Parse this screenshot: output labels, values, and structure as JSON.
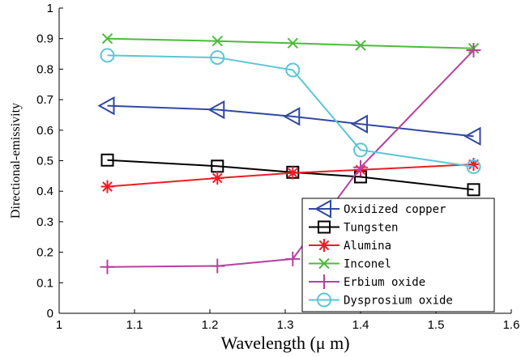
{
  "chart_data": {
    "type": "line",
    "title": "",
    "xlabel": "Wavelength (μ m)",
    "ylabel": "Directional-emissivity",
    "xlim": [
      1,
      1.6
    ],
    "ylim": [
      0,
      1
    ],
    "xticks": [
      "1",
      "1.1",
      "1.2",
      "1.3",
      "1.4",
      "1.5",
      "1.6"
    ],
    "yticks": [
      "0",
      "0.1",
      "0.2",
      "0.3",
      "0.4",
      "0.5",
      "0.6",
      "0.7",
      "0.8",
      "0.9",
      "1"
    ],
    "grid": false,
    "legend_position": "bottom-right",
    "series": [
      {
        "name": "Oxidized copper",
        "color": "#3049a0",
        "marker": "triangle-left",
        "x": [
          1.064,
          1.21,
          1.31,
          1.4,
          1.55
        ],
        "y": [
          0.68,
          0.667,
          0.645,
          0.62,
          0.58
        ]
      },
      {
        "name": "Tungsten",
        "color": "#000000",
        "marker": "square",
        "x": [
          1.064,
          1.21,
          1.31,
          1.4,
          1.55
        ],
        "y": [
          0.502,
          0.482,
          0.462,
          0.447,
          0.405
        ]
      },
      {
        "name": "Alumina",
        "color": "#ee1c24",
        "marker": "asterisk",
        "x": [
          1.064,
          1.21,
          1.31,
          1.4,
          1.55
        ],
        "y": [
          0.415,
          0.443,
          0.46,
          0.47,
          0.488
        ]
      },
      {
        "name": "Inconel",
        "color": "#4dbb3c",
        "marker": "x",
        "x": [
          1.064,
          1.21,
          1.31,
          1.4,
          1.55
        ],
        "y": [
          0.9,
          0.892,
          0.885,
          0.878,
          0.868
        ]
      },
      {
        "name": "Erbium oxide",
        "color": "#b641a0",
        "marker": "plus",
        "x": [
          1.064,
          1.21,
          1.31,
          1.4,
          1.55
        ],
        "y": [
          0.152,
          0.155,
          0.178,
          0.478,
          0.862
        ]
      },
      {
        "name": "Dysprosium oxide",
        "color": "#5bc6d6",
        "marker": "circle",
        "x": [
          1.064,
          1.21,
          1.31,
          1.4,
          1.55
        ],
        "y": [
          0.845,
          0.838,
          0.797,
          0.535,
          0.48
        ]
      }
    ]
  }
}
